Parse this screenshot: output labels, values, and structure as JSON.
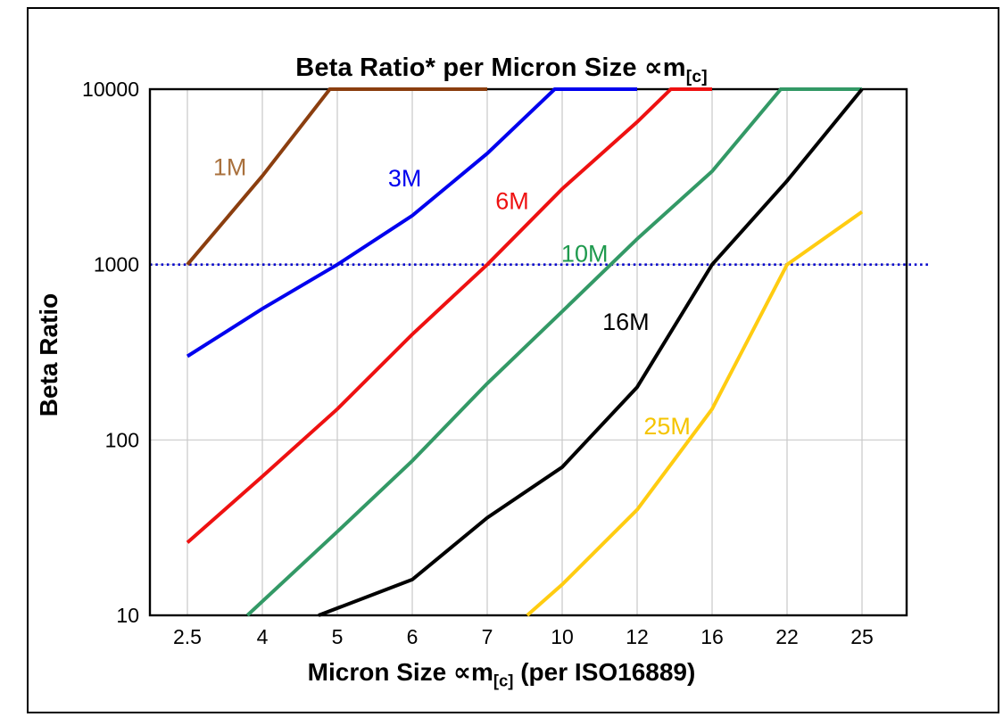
{
  "chart_data": {
    "type": "line",
    "title": {
      "main": "Beta Ratio* per Micron Size ",
      "symbol": "∝m",
      "sub": "[c]"
    },
    "xlabel": {
      "pre": "Micron Size ",
      "symbol": "∝m",
      "sub": "[c]",
      "post": " (per ISO16889)"
    },
    "ylabel": "Beta Ratio",
    "x_scale": "categorical",
    "y_scale": "log10",
    "categories": [
      2.5,
      4,
      5,
      6,
      7,
      10,
      12,
      16,
      22,
      25
    ],
    "x_tick_labels": [
      "2.5",
      "4",
      "5",
      "6",
      "7",
      "10",
      "12",
      "16",
      "22",
      "25"
    ],
    "y_ticks": [
      10,
      100,
      1000,
      10000
    ],
    "y_tick_labels": [
      "10",
      "100",
      "1000",
      "10000"
    ],
    "ylim": [
      10,
      10000
    ],
    "grid": {
      "show": true,
      "color": "#C9C9C9"
    },
    "frame_color": "#000000",
    "background": "#FFFFFF",
    "reference_line": {
      "y": 1000,
      "color": "#0000CC",
      "style": "dotted"
    },
    "series": [
      {
        "name": "1M",
        "color": "#8B3E0F",
        "label": {
          "text": "1M",
          "x": 3.35,
          "y": 3600,
          "color": "#A9703C"
        },
        "points": [
          [
            2.5,
            1000
          ],
          [
            4,
            3200
          ],
          [
            4.9,
            10000
          ],
          [
            7,
            10000
          ]
        ]
      },
      {
        "name": "3M",
        "color": "#0000EE",
        "label": {
          "text": "3M",
          "x": 5.9,
          "y": 3100,
          "color": "#0000EE"
        },
        "points": [
          [
            2.5,
            300
          ],
          [
            4,
            560
          ],
          [
            5,
            1000
          ],
          [
            6,
            1900
          ],
          [
            7,
            4300
          ],
          [
            9.7,
            10000
          ],
          [
            12,
            10000
          ]
        ]
      },
      {
        "name": "6M",
        "color": "#EE1111",
        "label": {
          "text": "6M",
          "x": 8.0,
          "y": 2300,
          "color": "#EE1111"
        },
        "points": [
          [
            2.5,
            26
          ],
          [
            4,
            62
          ],
          [
            5,
            150
          ],
          [
            6,
            400
          ],
          [
            7,
            1000
          ],
          [
            10,
            2700
          ],
          [
            12,
            6500
          ],
          [
            13.8,
            10000
          ],
          [
            16,
            10000
          ]
        ]
      },
      {
        "name": "10M",
        "color": "#339966",
        "label": {
          "text": "10M",
          "x": 10.6,
          "y": 1150,
          "color": "#1F9A4E"
        },
        "points": [
          [
            3.7,
            10
          ],
          [
            5,
            30
          ],
          [
            6,
            76
          ],
          [
            7,
            210
          ],
          [
            10,
            540
          ],
          [
            12,
            1400
          ],
          [
            16,
            3400
          ],
          [
            21.5,
            10000
          ],
          [
            25,
            10000
          ]
        ]
      },
      {
        "name": "16M",
        "color": "#000000",
        "label": {
          "text": "16M",
          "x": 11.7,
          "y": 470,
          "color": "#000000"
        },
        "points": [
          [
            4.75,
            10
          ],
          [
            6,
            16
          ],
          [
            7,
            36
          ],
          [
            10,
            70
          ],
          [
            12,
            200
          ],
          [
            16,
            1000
          ],
          [
            22,
            3000
          ],
          [
            25,
            10000
          ]
        ]
      },
      {
        "name": "25M",
        "color": "#FFCC11",
        "label": {
          "text": "25M",
          "x": 13.6,
          "y": 120,
          "color": "#F5C400"
        },
        "points": [
          [
            8.6,
            10
          ],
          [
            10,
            15
          ],
          [
            12,
            40
          ],
          [
            16,
            150
          ],
          [
            22,
            1000
          ],
          [
            25,
            2000
          ]
        ]
      }
    ]
  }
}
